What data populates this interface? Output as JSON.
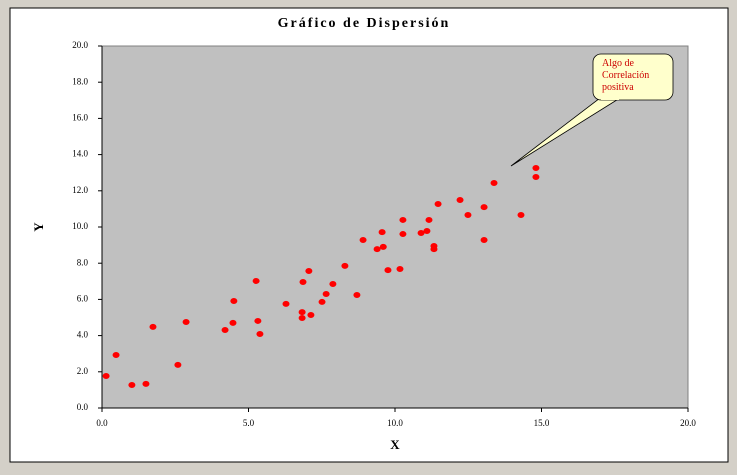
{
  "chart_data": {
    "type": "scatter",
    "title": "Gráfico de Dispersión",
    "x_label": "X",
    "y_label": "Y",
    "annotation": "Algo de Correlación positiva",
    "color": "#ff0000",
    "plot_background": "#c0c0c0",
    "x": [
      0.14,
      0.48,
      1.02,
      1.5,
      1.74,
      2.59,
      2.87,
      4.2,
      4.47,
      4.5,
      5.26,
      5.32,
      5.39,
      6.28,
      6.86,
      6.83,
      6.83,
      7.06,
      7.13,
      7.51,
      7.65,
      7.88,
      8.29,
      8.7,
      8.91,
      9.39,
      9.56,
      9.6,
      9.76,
      10.17,
      10.27,
      10.27,
      10.89,
      11.09,
      11.16,
      11.33,
      11.33,
      11.47,
      12.22,
      12.49,
      13.04,
      13.04,
      13.38,
      14.3,
      14.81,
      14.81
    ],
    "values": [
      1.77,
      2.93,
      1.27,
      1.33,
      4.48,
      2.38,
      4.75,
      4.31,
      4.7,
      5.91,
      7.02,
      4.81,
      4.09,
      5.75,
      6.96,
      5.3,
      4.97,
      7.57,
      5.14,
      5.86,
      6.3,
      6.85,
      7.85,
      6.24,
      9.28,
      8.78,
      9.72,
      8.9,
      7.62,
      7.68,
      10.39,
      9.61,
      9.67,
      9.78,
      10.39,
      8.78,
      8.95,
      11.27,
      11.49,
      10.66,
      11.1,
      9.28,
      12.43,
      10.66,
      13.26,
      12.76
    ],
    "xlim": [
      0,
      20
    ],
    "ylim": [
      0,
      20
    ],
    "xticks": [
      {
        "value": 0,
        "label": "0.0"
      },
      {
        "value": 5,
        "label": "5.0"
      },
      {
        "value": 10,
        "label": "10.0"
      },
      {
        "value": 15,
        "label": "15.0"
      },
      {
        "value": 20,
        "label": "20.0"
      }
    ],
    "yticks": [
      {
        "value": 0,
        "label": "0.0"
      },
      {
        "value": 2,
        "label": "2.0"
      },
      {
        "value": 4,
        "label": "4.0"
      },
      {
        "value": 6,
        "label": "6.0"
      },
      {
        "value": 8,
        "label": "8.0"
      },
      {
        "value": 10,
        "label": "10.0"
      },
      {
        "value": 12,
        "label": "12.0"
      },
      {
        "value": 14,
        "label": "14.0"
      },
      {
        "value": 16,
        "label": "16.0"
      },
      {
        "value": 18,
        "label": "18.0"
      },
      {
        "value": 20,
        "label": "20.0"
      }
    ]
  }
}
